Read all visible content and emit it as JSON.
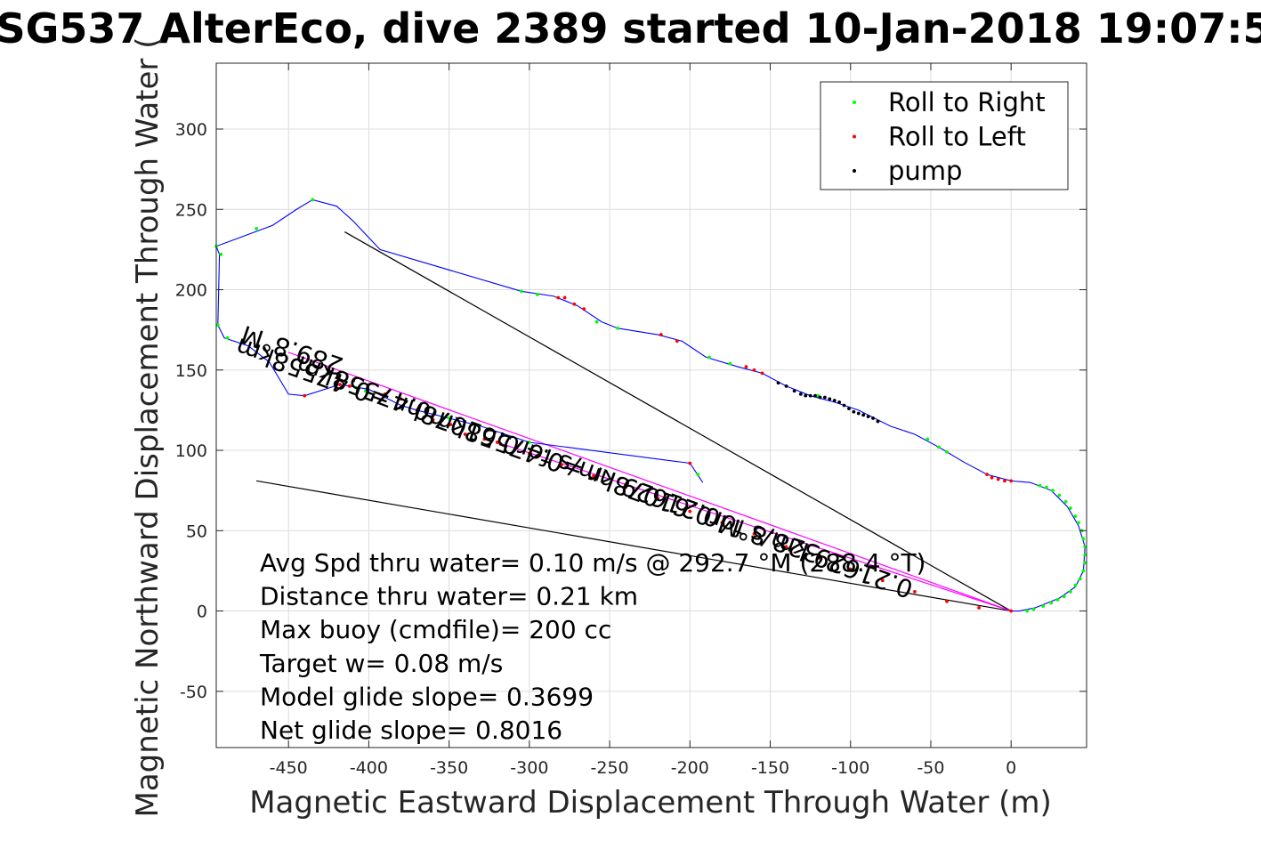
{
  "chart_data": {
    "type": "line",
    "title": "SG537 AlterEco, dive 2389 started 10-Jan-2018 19:07:5",
    "xlabel": "Magnetic Eastward Displacement Through Water (m)",
    "ylabel": "Magnetic Northward Displacement Through Water (",
    "xlim": [
      -495,
      47
    ],
    "ylim": [
      -85,
      341
    ],
    "xticks": [
      -450,
      -400,
      -350,
      -300,
      -250,
      -200,
      -150,
      -100,
      -50,
      0
    ],
    "xtick_labels": [
      "-450",
      "-400",
      "-350",
      "-300",
      "-250",
      "-200",
      "-150",
      "-100",
      "-50",
      "0"
    ],
    "yticks": [
      -50,
      0,
      50,
      100,
      150,
      200,
      250,
      300
    ],
    "ytick_labels": [
      "-50",
      "0",
      "50",
      "100",
      "150",
      "200",
      "250",
      "300"
    ],
    "grid": true,
    "legend_position": "top-right",
    "legend": [
      {
        "label": "Roll to Right",
        "color": "#00ff00"
      },
      {
        "label": "Roll to Left",
        "color": "#ff0000"
      },
      {
        "label": "pump",
        "color": "#000000"
      }
    ],
    "track": {
      "color": "#0000ff",
      "points": [
        [
          -192,
          80
        ],
        [
          -200,
          92
        ],
        [
          -300,
          105
        ],
        [
          -330,
          115
        ],
        [
          -370,
          125
        ],
        [
          -380,
          128
        ],
        [
          -400,
          138
        ],
        [
          -418,
          141
        ],
        [
          -440,
          134
        ],
        [
          -450,
          135
        ],
        [
          -462,
          155
        ],
        [
          -475,
          165
        ],
        [
          -490,
          170
        ],
        [
          -494,
          178
        ],
        [
          -493,
          222
        ],
        [
          -495,
          227
        ],
        [
          -460,
          240
        ],
        [
          -445,
          250
        ],
        [
          -435,
          256
        ],
        [
          -420,
          252
        ],
        [
          -410,
          243
        ],
        [
          -393,
          225
        ],
        [
          -305,
          199
        ],
        [
          -285,
          196
        ],
        [
          -270,
          190
        ],
        [
          -255,
          180
        ],
        [
          -245,
          176
        ],
        [
          -220,
          172
        ],
        [
          -205,
          168
        ],
        [
          -190,
          158
        ],
        [
          -170,
          152
        ],
        [
          -155,
          148
        ],
        [
          -140,
          140
        ],
        [
          -125,
          134
        ],
        [
          -110,
          130
        ],
        [
          -95,
          125
        ],
        [
          -75,
          115
        ],
        [
          -60,
          110
        ],
        [
          -45,
          102
        ],
        [
          -30,
          93
        ],
        [
          -15,
          85
        ],
        [
          0,
          81
        ],
        [
          12,
          80
        ],
        [
          25,
          75
        ],
        [
          35,
          65
        ],
        [
          42,
          53
        ],
        [
          46,
          40
        ],
        [
          45,
          25
        ],
        [
          40,
          15
        ],
        [
          30,
          8
        ],
        [
          15,
          2
        ],
        [
          5,
          0
        ],
        [
          0,
          0
        ]
      ]
    },
    "series": [
      {
        "name": "Roll to Right",
        "color": "#00ff00",
        "points": [
          [
            -195,
            85
          ],
          [
            -300,
            105
          ],
          [
            -350,
            120
          ],
          [
            -402,
            137
          ],
          [
            -408,
            139
          ],
          [
            -488,
            170
          ],
          [
            -494,
            178
          ],
          [
            -492,
            222
          ],
          [
            -495,
            227
          ],
          [
            -470,
            238
          ],
          [
            -435,
            256
          ],
          [
            -305,
            199
          ],
          [
            -295,
            197
          ],
          [
            -258,
            180
          ],
          [
            -245,
            176
          ],
          [
            -188,
            158
          ],
          [
            -175,
            154
          ],
          [
            -120,
            134
          ],
          [
            -52,
            107
          ],
          [
            -45,
            102
          ],
          [
            -40,
            99
          ],
          [
            18,
            78
          ],
          [
            22,
            77
          ],
          [
            26,
            75
          ],
          [
            30,
            72
          ],
          [
            34,
            68
          ],
          [
            37,
            64
          ],
          [
            40,
            59
          ],
          [
            42,
            55
          ],
          [
            44,
            50
          ],
          [
            45,
            45
          ],
          [
            46,
            40
          ],
          [
            46,
            35
          ],
          [
            46,
            30
          ],
          [
            45,
            25
          ],
          [
            43,
            20
          ],
          [
            40,
            16
          ],
          [
            37,
            12
          ],
          [
            33,
            9
          ],
          [
            29,
            7
          ],
          [
            25,
            5
          ],
          [
            20,
            3
          ],
          [
            14,
            1
          ],
          [
            10,
            0
          ]
        ]
      },
      {
        "name": "Roll to Left",
        "color": "#ff0000",
        "points": [
          [
            -200,
            92
          ],
          [
            -390,
            135
          ],
          [
            -380,
            132
          ],
          [
            -370,
            125
          ],
          [
            -360,
            119
          ],
          [
            -349,
            116
          ],
          [
            -340,
            110
          ],
          [
            -328,
            107
          ],
          [
            -318,
            104
          ],
          [
            -440,
            134
          ],
          [
            -418,
            141
          ],
          [
            -412,
            140
          ],
          [
            -282,
            195
          ],
          [
            -278,
            195
          ],
          [
            -272,
            191
          ],
          [
            -266,
            188
          ],
          [
            -218,
            172
          ],
          [
            -208,
            168
          ],
          [
            -165,
            152
          ],
          [
            -160,
            150
          ],
          [
            -155,
            148
          ],
          [
            -15,
            85
          ],
          [
            -12,
            83
          ],
          [
            -8,
            82
          ],
          [
            -4,
            81
          ],
          [
            0,
            81
          ],
          [
            -320,
            105
          ],
          [
            -300,
            98
          ],
          [
            -280,
            91
          ],
          [
            -260,
            84
          ],
          [
            -240,
            77
          ],
          [
            -220,
            70
          ],
          [
            -200,
            62
          ],
          [
            -180,
            55
          ],
          [
            -160,
            48
          ],
          [
            -140,
            40
          ],
          [
            -120,
            33
          ],
          [
            -100,
            26
          ],
          [
            -80,
            19
          ],
          [
            -60,
            12
          ],
          [
            -40,
            6
          ],
          [
            -20,
            2
          ],
          [
            0,
            0
          ]
        ]
      },
      {
        "name": "pump",
        "color": "#000000",
        "points": [
          [
            -145,
            142
          ],
          [
            -140,
            140
          ],
          [
            -135,
            137
          ],
          [
            -131,
            135
          ],
          [
            -128,
            134
          ],
          [
            -125,
            134
          ],
          [
            -122,
            134
          ],
          [
            -119,
            133
          ],
          [
            -116,
            133
          ],
          [
            -113,
            132
          ],
          [
            -110,
            131
          ],
          [
            -107,
            130
          ],
          [
            -104,
            128
          ],
          [
            -101,
            126
          ],
          [
            -98,
            124
          ],
          [
            -95,
            123
          ],
          [
            -92,
            122
          ],
          [
            -89,
            121
          ],
          [
            -86,
            120
          ],
          [
            -83,
            118
          ]
        ]
      }
    ],
    "reference_lines": [
      {
        "color": "#000000",
        "points": [
          [
            -415,
            236
          ],
          [
            0,
            0
          ]
        ]
      },
      {
        "color": "#000000",
        "points": [
          [
            -470,
            81
          ],
          [
            0,
            0
          ]
        ]
      },
      {
        "color": "#ff00ff",
        "points": [
          [
            -450,
            161
          ],
          [
            0,
            0
          ]
        ]
      },
      {
        "color": "#ff00ff",
        "points": [
          [
            -320,
            105
          ],
          [
            0,
            0
          ]
        ]
      }
    ],
    "annotations": [
      {
        "text": "289.8°M",
        "at": [
          -415,
          157
        ],
        "rotate": 198.6
      },
      {
        "text": "0.47558km",
        "at": [
          -360,
          128
        ],
        "rotate": 200.7
      },
      {
        "text": "0.21629 km/s for0.61078hr =0.47558km",
        "at": [
          -180,
          62
        ],
        "rotate": 199.8
      },
      {
        "text": "328.8°M",
        "at": [
          -118,
          40
        ],
        "rotate": 198.0
      },
      {
        "text": "0.21629 km/s for0.61078hr =0.47558km",
        "at": [
          -60,
          18
        ],
        "rotate": 199.8
      }
    ],
    "stats": [
      "Avg Spd thru water=  0.10 m/s @ 292.7 °M (288.4 °T)",
      "Distance thru water=  0.21 km",
      "Max buoy (cmdfile)= 200 cc",
      "Target w= 0.08 m/s",
      "Model glide slope= 0.3699",
      "Net glide slope= 0.8016"
    ]
  }
}
